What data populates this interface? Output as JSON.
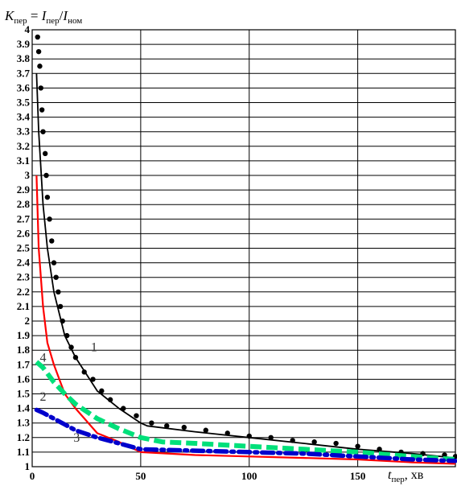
{
  "chart_data": {
    "type": "line",
    "title": {
      "k": "K",
      "k_sub": "пер",
      "eq": " = ",
      "i1": "I",
      "i1_sub": "пер",
      "slash": "/",
      "i2": "I",
      "i2_sub": "ном"
    },
    "xlabel": {
      "t": "t",
      "t_sub": "пер",
      "unit": ", хв"
    },
    "xlim": [
      0,
      195
    ],
    "ylim": [
      1,
      4
    ],
    "x_ticks": [
      "0",
      "50",
      "100",
      "150"
    ],
    "y_ticks": [
      "1",
      "1.1",
      "1.2",
      "1.3",
      "1.4",
      "1.5",
      "1.6",
      "1.7",
      "1.8",
      "1.9",
      "2",
      "2.1",
      "2.2",
      "2.3",
      "2.4",
      "2.5",
      "2.6",
      "2.7",
      "2.8",
      "2.9",
      "3",
      "3.1",
      "3.2",
      "3.3",
      "3.4",
      "3.5",
      "3.6",
      "3.7",
      "3.8",
      "3.9",
      "4"
    ],
    "series": [
      {
        "label": "1",
        "style": "solid",
        "color": "#000000",
        "points": [
          [
            2,
            3.7
          ],
          [
            3,
            3.3
          ],
          [
            5,
            2.8
          ],
          [
            7,
            2.5
          ],
          [
            10,
            2.2
          ],
          [
            15,
            1.9
          ],
          [
            20,
            1.75
          ],
          [
            30,
            1.52
          ],
          [
            40,
            1.4
          ],
          [
            50,
            1.3
          ],
          [
            53,
            1.28
          ],
          [
            75,
            1.24
          ],
          [
            100,
            1.2
          ],
          [
            125,
            1.16
          ],
          [
            150,
            1.12
          ],
          [
            175,
            1.09
          ],
          [
            195,
            1.06
          ]
        ]
      },
      {
        "label": "1",
        "style": "dots",
        "color": "#000000",
        "points": [
          [
            2.5,
            3.95
          ],
          [
            3,
            3.85
          ],
          [
            3.5,
            3.75
          ],
          [
            4,
            3.6
          ],
          [
            4.5,
            3.45
          ],
          [
            5,
            3.3
          ],
          [
            6,
            3.15
          ],
          [
            6.5,
            3.0
          ],
          [
            7,
            2.85
          ],
          [
            8,
            2.7
          ],
          [
            9,
            2.55
          ],
          [
            10,
            2.4
          ],
          [
            11,
            2.3
          ],
          [
            12,
            2.2
          ],
          [
            13,
            2.1
          ],
          [
            14,
            2.0
          ],
          [
            16,
            1.9
          ],
          [
            18,
            1.82
          ],
          [
            20,
            1.75
          ],
          [
            24,
            1.65
          ],
          [
            28,
            1.6
          ],
          [
            32,
            1.52
          ],
          [
            36,
            1.46
          ],
          [
            42,
            1.4
          ],
          [
            48,
            1.35
          ],
          [
            55,
            1.3
          ],
          [
            62,
            1.28
          ],
          [
            70,
            1.27
          ],
          [
            80,
            1.25
          ],
          [
            90,
            1.23
          ],
          [
            100,
            1.21
          ],
          [
            110,
            1.2
          ],
          [
            120,
            1.18
          ],
          [
            130,
            1.17
          ],
          [
            140,
            1.16
          ],
          [
            150,
            1.14
          ],
          [
            160,
            1.12
          ],
          [
            170,
            1.1
          ],
          [
            180,
            1.09
          ],
          [
            190,
            1.08
          ],
          [
            195,
            1.07
          ]
        ]
      },
      {
        "label": "4",
        "style": "solid",
        "color": "#ff0000",
        "points": [
          [
            2,
            3.0
          ],
          [
            3,
            2.5
          ],
          [
            5,
            2.1
          ],
          [
            7,
            1.85
          ],
          [
            10,
            1.7
          ],
          [
            15,
            1.5
          ],
          [
            20,
            1.4
          ],
          [
            30,
            1.23
          ],
          [
            40,
            1.17
          ],
          [
            50,
            1.1
          ],
          [
            75,
            1.08
          ],
          [
            100,
            1.07
          ],
          [
            125,
            1.06
          ],
          [
            150,
            1.05
          ],
          [
            175,
            1.03
          ],
          [
            195,
            1.02
          ]
        ]
      },
      {
        "label": "2",
        "style": "dash",
        "color": "#00e07a",
        "points": [
          [
            2,
            1.72
          ],
          [
            5,
            1.68
          ],
          [
            10,
            1.58
          ],
          [
            15,
            1.5
          ],
          [
            20,
            1.43
          ],
          [
            30,
            1.33
          ],
          [
            40,
            1.26
          ],
          [
            50,
            1.2
          ],
          [
            60,
            1.17
          ],
          [
            75,
            1.16
          ],
          [
            100,
            1.14
          ],
          [
            125,
            1.12
          ],
          [
            150,
            1.1
          ],
          [
            175,
            1.07
          ],
          [
            195,
            1.05
          ]
        ]
      },
      {
        "label": "3",
        "style": "dashdot",
        "color": "#0000cc",
        "points": [
          [
            2,
            1.39
          ],
          [
            5,
            1.37
          ],
          [
            10,
            1.33
          ],
          [
            15,
            1.29
          ],
          [
            20,
            1.25
          ],
          [
            30,
            1.2
          ],
          [
            40,
            1.16
          ],
          [
            50,
            1.12
          ],
          [
            75,
            1.11
          ],
          [
            100,
            1.1
          ],
          [
            125,
            1.09
          ],
          [
            150,
            1.07
          ],
          [
            175,
            1.05
          ],
          [
            195,
            1.04
          ]
        ]
      }
    ],
    "curve_labels": [
      {
        "text": "1",
        "x": 27,
        "y": 1.82
      },
      {
        "text": "4",
        "x": 3.5,
        "y": 1.75
      },
      {
        "text": "2",
        "x": 3.5,
        "y": 1.48
      },
      {
        "text": "3",
        "x": 19,
        "y": 1.2
      }
    ]
  }
}
